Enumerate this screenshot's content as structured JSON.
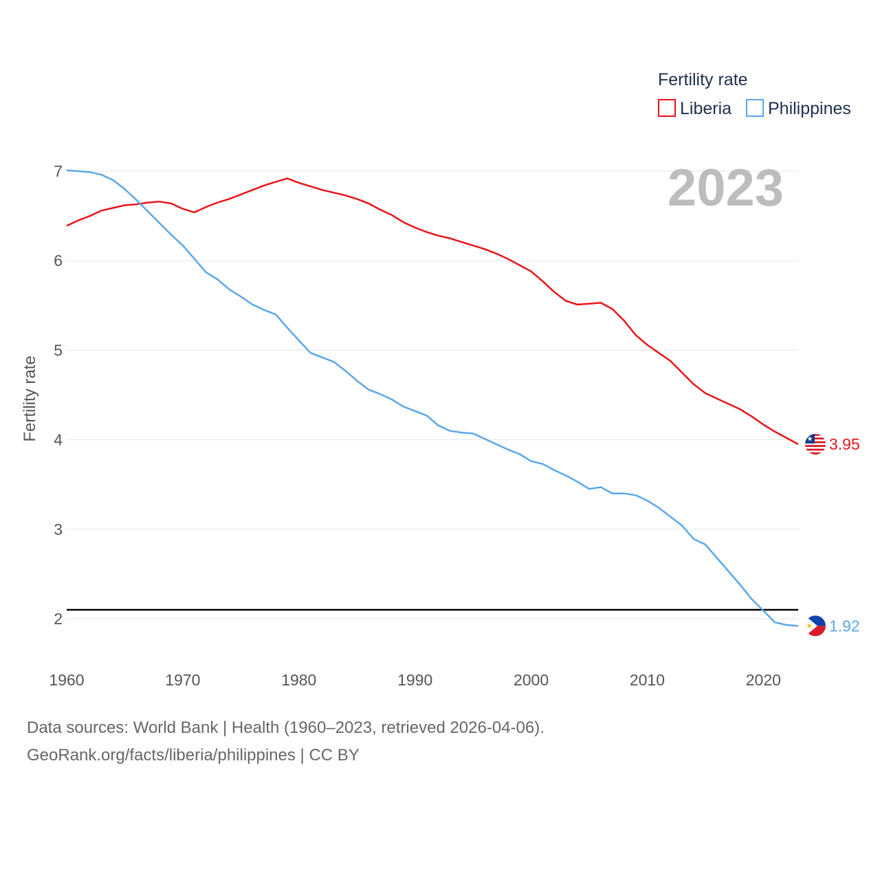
{
  "chart_data": {
    "type": "line",
    "ylabel": "Fertility rate",
    "legend_title": "Fertility rate",
    "year_label": "2023",
    "x_range": [
      1960,
      2023
    ],
    "ylim": [
      1.5,
      7.0
    ],
    "y_ticks": [
      2,
      3,
      4,
      5,
      6,
      7
    ],
    "x_ticks": [
      1960,
      1970,
      1980,
      1990,
      2000,
      2010,
      2020
    ],
    "reference_line": 2.1,
    "years": [
      1960,
      1961,
      1962,
      1963,
      1964,
      1965,
      1966,
      1967,
      1968,
      1969,
      1970,
      1971,
      1972,
      1973,
      1974,
      1975,
      1976,
      1977,
      1978,
      1979,
      1980,
      1981,
      1982,
      1983,
      1984,
      1985,
      1986,
      1987,
      1988,
      1989,
      1990,
      1991,
      1992,
      1993,
      1994,
      1995,
      1996,
      1997,
      1998,
      1999,
      2000,
      2001,
      2002,
      2003,
      2004,
      2005,
      2006,
      2007,
      2008,
      2009,
      2010,
      2011,
      2012,
      2013,
      2014,
      2015,
      2016,
      2017,
      2018,
      2019,
      2020,
      2021,
      2022,
      2023
    ],
    "series": [
      {
        "name": "Liberia",
        "color": "#e8141a",
        "end_label": "3.95",
        "values": [
          6.39,
          6.45,
          6.5,
          6.56,
          6.59,
          6.62,
          6.63,
          6.65,
          6.66,
          6.64,
          6.58,
          6.54,
          6.6,
          6.65,
          6.69,
          6.74,
          6.79,
          6.84,
          6.88,
          6.92,
          6.87,
          6.83,
          6.79,
          6.76,
          6.73,
          6.69,
          6.64,
          6.57,
          6.51,
          6.43,
          6.37,
          6.32,
          6.28,
          6.25,
          6.21,
          6.17,
          6.13,
          6.08,
          6.02,
          5.95,
          5.88,
          5.77,
          5.65,
          5.55,
          5.51,
          5.52,
          5.53,
          5.46,
          5.33,
          5.17,
          5.06,
          4.97,
          4.88,
          4.75,
          4.62,
          4.52,
          4.46,
          4.4,
          4.34,
          4.26,
          4.17,
          4.09,
          4.02,
          3.95
        ]
      },
      {
        "name": "Philippines",
        "color": "#5ba7e8",
        "end_label": "1.92",
        "values": [
          7.01,
          7.0,
          6.99,
          6.96,
          6.9,
          6.8,
          6.68,
          6.55,
          6.42,
          6.29,
          6.17,
          6.02,
          5.87,
          5.79,
          5.68,
          5.6,
          5.51,
          5.45,
          5.4,
          5.25,
          5.11,
          4.97,
          4.92,
          4.87,
          4.77,
          4.66,
          4.56,
          4.51,
          4.45,
          4.37,
          4.32,
          4.27,
          4.16,
          4.1,
          4.08,
          4.07,
          4.01,
          3.95,
          3.89,
          3.84,
          3.76,
          3.73,
          3.66,
          3.6,
          3.53,
          3.45,
          3.47,
          3.4,
          3.4,
          3.38,
          3.32,
          3.24,
          3.14,
          3.04,
          2.89,
          2.83,
          2.68,
          2.53,
          2.38,
          2.22,
          2.09,
          1.96,
          1.93,
          1.92
        ]
      }
    ]
  },
  "footer": {
    "line1": "Data sources: World Bank | Health (1960–2023, retrieved 2026-04-06).",
    "line2": "GeoRank.org/facts/liberia/philippines | CC BY"
  }
}
